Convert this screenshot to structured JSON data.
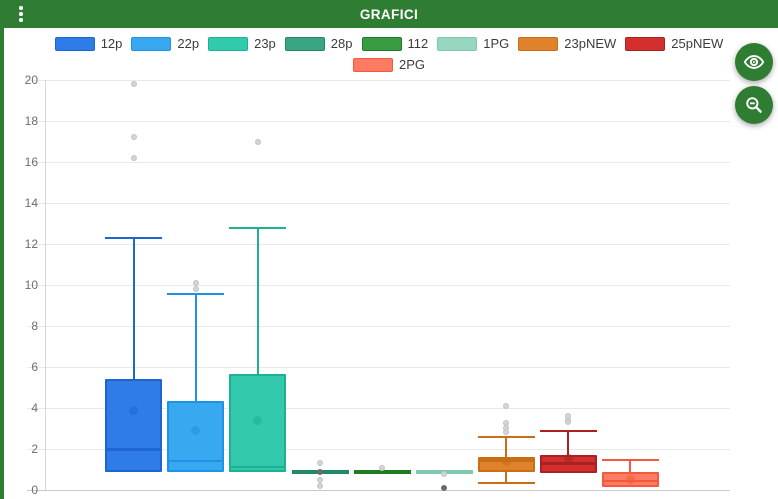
{
  "header": {
    "title": "GRAFICI",
    "bg_color": "#2e7d32",
    "menu_icon": "kebab-vertical-icon"
  },
  "edge_strip_color": "#2e7d32",
  "fab_buttons": [
    {
      "id": "toggle-visibility",
      "icon": "eye-icon",
      "color": "#2e7d32"
    },
    {
      "id": "zoom-out",
      "icon": "zoom-out-icon",
      "color": "#2e7d32"
    }
  ],
  "legend": {
    "rows": [
      [
        "12p",
        "22p",
        "23p",
        "28p",
        "112",
        "1PG",
        "23pNEW",
        "25pNEW"
      ],
      [
        "2PG"
      ]
    ]
  },
  "chart_data": {
    "type": "boxplot",
    "title": "GRAFICI",
    "xlabel": "",
    "ylabel": "",
    "ylim": [
      0,
      20
    ],
    "ytick_step": 2,
    "ytick_labels": [
      "0",
      "2",
      "4",
      "6",
      "8",
      "10",
      "12",
      "14",
      "16",
      "18",
      "20"
    ],
    "grid": "horizontal",
    "legend_position": "top",
    "categories": [
      "12p",
      "22p",
      "23p",
      "28p",
      "112",
      "1PG",
      "23pNEW",
      "25pNEW",
      "2PG"
    ],
    "series": [
      {
        "name": "12p",
        "fill": "#2f7ce8",
        "border": "#1f65d2",
        "low": 0.9,
        "q1": 0.9,
        "median": 2.0,
        "q3": 5.4,
        "high": 12.3,
        "mean": 3.9,
        "outliers": [
          {
            "v": 19.8,
            "shade": "light"
          },
          {
            "v": 17.2,
            "shade": "light"
          },
          {
            "v": 16.2,
            "shade": "light"
          }
        ]
      },
      {
        "name": "22p",
        "fill": "#38a9f0",
        "border": "#1e93e6",
        "low": 0.87,
        "q1": 0.87,
        "median": 1.42,
        "q3": 4.35,
        "high": 9.55,
        "mean": 2.9,
        "outliers": [
          {
            "v": 10.1,
            "shade": "light"
          },
          {
            "v": 9.8,
            "shade": "light"
          }
        ]
      },
      {
        "name": "23p",
        "fill": "#32c9ac",
        "border": "#1db192",
        "low": 0.87,
        "q1": 0.87,
        "median": 1.13,
        "q3": 5.67,
        "high": 12.8,
        "mean": 3.4,
        "outliers": [
          {
            "v": 17.0,
            "shade": "light"
          }
        ]
      },
      {
        "name": "28p",
        "fill": "#3aa585",
        "border": "#20896a",
        "collapsed_value": 0.9,
        "outliers": [
          {
            "v": 1.3,
            "shade": "light"
          },
          {
            "v": 0.9,
            "shade": "dark"
          },
          {
            "v": 0.5,
            "shade": "light"
          },
          {
            "v": 0.2,
            "shade": "light"
          }
        ]
      },
      {
        "name": "112",
        "fill": "#3a9c40",
        "border": "#1e7d23",
        "collapsed_value": 0.9,
        "outliers": [
          {
            "v": 1.05,
            "shade": "light"
          }
        ]
      },
      {
        "name": "1PG",
        "fill": "#98d7bf",
        "border": "#7ccaab",
        "collapsed_value": 0.9,
        "outliers": [
          {
            "v": 0.77,
            "shade": "light"
          },
          {
            "v": 0.08,
            "shade": "dark"
          }
        ]
      },
      {
        "name": "23pNEW",
        "fill": "#e0812b",
        "border": "#c96d16",
        "low": 0.33,
        "q1": 0.87,
        "median": 1.45,
        "q3": 1.63,
        "high": 2.58,
        "mean": 1.4,
        "outliers": [
          {
            "v": 4.1,
            "shade": "light"
          },
          {
            "v": 3.25,
            "shade": "light"
          },
          {
            "v": 3.02,
            "shade": "light"
          },
          {
            "v": 2.85,
            "shade": "light"
          }
        ]
      },
      {
        "name": "25pNEW",
        "fill": "#d32f2f",
        "border": "#a82222",
        "low": 0.82,
        "q1": 0.82,
        "median": 1.31,
        "q3": 1.72,
        "high": 2.9,
        "mean": 1.55,
        "outliers": [
          {
            "v": 3.6,
            "shade": "light"
          },
          {
            "v": 3.4,
            "shade": "light"
          },
          {
            "v": 3.3,
            "shade": "light"
          }
        ]
      },
      {
        "name": "2PG",
        "fill": "#fb7c62",
        "border": "#f4593d",
        "low": 0.16,
        "q1": 0.16,
        "median": 0.44,
        "q3": 0.87,
        "high": 1.47,
        "mean": 0.52,
        "outliers": []
      }
    ],
    "outlier_colors": {
      "light": "#d4d4d4",
      "dark": "#6b6b6b"
    }
  }
}
